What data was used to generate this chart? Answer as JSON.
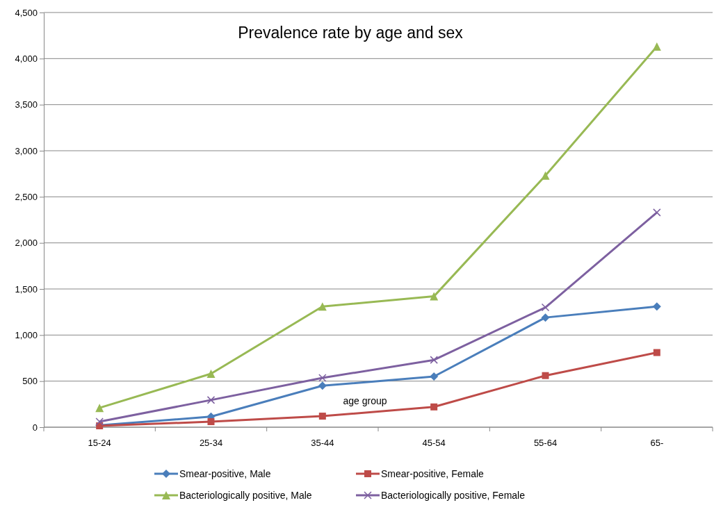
{
  "chart_data": {
    "type": "line",
    "title": "Prevalence rate by age and sex",
    "xlabel": "age group",
    "categories": [
      "15-24",
      "25-34",
      "35-44",
      "45-54",
      "55-64",
      "65-"
    ],
    "series": [
      {
        "name": "Smear-positive, Male",
        "color": "#4a7ebb",
        "marker": "diamond",
        "values": [
          20,
          115,
          450,
          550,
          1190,
          1310
        ]
      },
      {
        "name": "Smear-positive, Female",
        "color": "#be4b48",
        "marker": "square",
        "values": [
          15,
          60,
          120,
          220,
          560,
          810
        ]
      },
      {
        "name": "Bacteriologically positive, Male",
        "color": "#98b954",
        "marker": "triangle",
        "values": [
          210,
          580,
          1310,
          1420,
          2730,
          4130
        ]
      },
      {
        "name": "Bacteriologically positive, Female",
        "color": "#7d60a0",
        "marker": "cross",
        "values": [
          60,
          295,
          535,
          730,
          1300,
          2330
        ]
      }
    ],
    "ylim": [
      0,
      4500
    ],
    "yticks": [
      0,
      500,
      {
        "value": 1000,
        "label": "1,000"
      },
      {
        "value": 1500,
        "label": "1,500"
      },
      {
        "value": 2000,
        "label": "2,000"
      },
      {
        "value": 2500,
        "label": "2,500"
      },
      {
        "value": 3000,
        "label": "3,000"
      },
      {
        "value": 3500,
        "label": "3,500"
      },
      {
        "value": 4000,
        "label": "4,000"
      },
      {
        "value": 4500,
        "label": "4,500"
      }
    ],
    "grid": "y",
    "legend": "bottom",
    "line_style": "solid"
  }
}
